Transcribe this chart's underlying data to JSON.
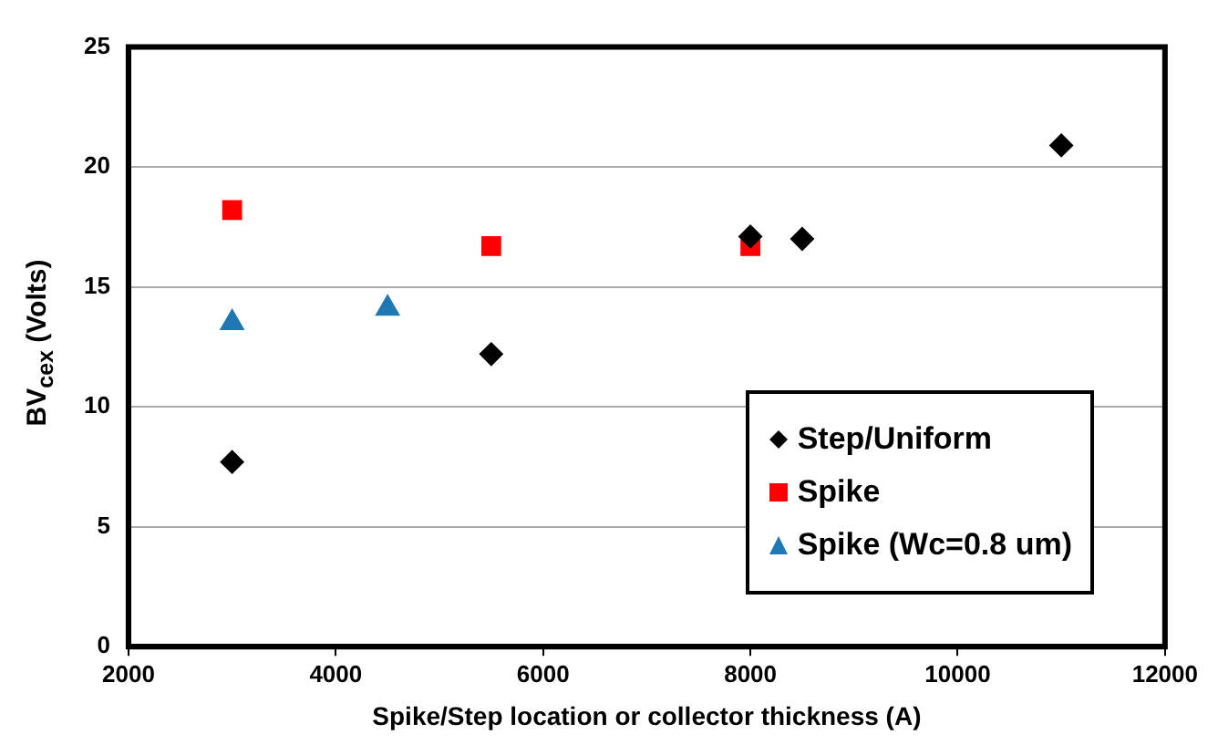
{
  "chart_data": {
    "type": "scatter",
    "xlabel": "Spike/Step location or collector thickness (A)",
    "ylabel": "BV$_{cex}$ (Volts)",
    "xlim": [
      2000,
      12000
    ],
    "xticks": [
      2000,
      4000,
      6000,
      8000,
      10000,
      12000
    ],
    "ylim": [
      0,
      25
    ],
    "yticks": [
      0,
      5,
      10,
      15,
      20,
      25
    ],
    "grid": "y",
    "legend": "bottom right",
    "series": [
      {
        "name": "Step/Uniform",
        "color": "#000000",
        "marker": "diamond",
        "x": [
          3000,
          5500,
          8000,
          8500,
          11000
        ],
        "values": [
          7.7,
          12.2,
          17.1,
          17.0,
          20.9
        ]
      },
      {
        "name": "Spike",
        "color": "#ff0000",
        "marker": "square",
        "x": [
          3000,
          5500,
          8000
        ],
        "values": [
          18.2,
          16.7,
          16.7
        ]
      },
      {
        "name": "Spike (Wc=0.8 um)",
        "color": "#1f77b4",
        "marker": "triangle",
        "x": [
          3000,
          4500
        ],
        "values": [
          13.5,
          14.1
        ]
      }
    ]
  }
}
